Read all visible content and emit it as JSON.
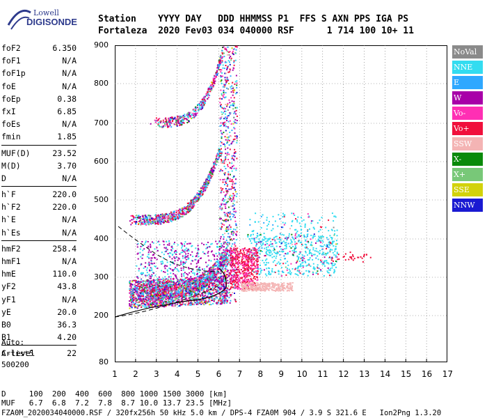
{
  "logo": {
    "line1": "Lowell",
    "line2": "DIGISONDE"
  },
  "header": {
    "line1": "Station    YYYY DAY   DDD HHMMSS P1  FFS S AXN PPS IGA PS",
    "line2": "Fortaleza  2020 Fev03 034 040000 RSF      1 714 100 10+ 11"
  },
  "params": {
    "group1": [
      {
        "k": "foF2",
        "v": "6.350"
      },
      {
        "k": "foF1",
        "v": "N/A"
      },
      {
        "k": "foF1p",
        "v": "N/A"
      },
      {
        "k": "foE",
        "v": "N/A"
      },
      {
        "k": "foEp",
        "v": "0.38"
      },
      {
        "k": "fxI",
        "v": "6.85"
      },
      {
        "k": "foEs",
        "v": "N/A"
      },
      {
        "k": "fmin",
        "v": "1.85"
      }
    ],
    "group2": [
      {
        "k": "MUF(D)",
        "v": "23.52"
      },
      {
        "k": "M(D)",
        "v": "3.70"
      },
      {
        "k": "D",
        "v": "N/A"
      }
    ],
    "group3": [
      {
        "k": "h`F",
        "v": "220.0"
      },
      {
        "k": "h`F2",
        "v": "220.0"
      },
      {
        "k": "h`E",
        "v": "N/A"
      },
      {
        "k": "h`Es",
        "v": "N/A"
      }
    ],
    "group4": [
      {
        "k": "hmF2",
        "v": "258.4"
      },
      {
        "k": "hmF1",
        "v": "N/A"
      },
      {
        "k": "hmE",
        "v": "110.0"
      },
      {
        "k": "yF2",
        "v": "43.8"
      },
      {
        "k": "yF1",
        "v": "N/A"
      },
      {
        "k": "yE",
        "v": "20.0"
      },
      {
        "k": "B0",
        "v": "36.3"
      },
      {
        "k": "B1",
        "v": "4.20"
      }
    ],
    "group5": [
      {
        "k": "C-level",
        "v": "22"
      }
    ]
  },
  "auto": {
    "line1": "Auto:",
    "line2": "Artist5",
    "line3": "500200"
  },
  "legend": [
    {
      "label": "NoVal",
      "color": "#8a8a8a"
    },
    {
      "label": "NNE",
      "color": "#33dcf0"
    },
    {
      "label": "E",
      "color": "#2fa8ff"
    },
    {
      "label": "W",
      "color": "#a800a8"
    },
    {
      "label": "Vo-",
      "color": "#ff2fb4"
    },
    {
      "label": "Vo+",
      "color": "#f0103c"
    },
    {
      "label": "SSW",
      "color": "#f4b4b4"
    },
    {
      "label": "X-",
      "color": "#0a8a0a"
    },
    {
      "label": "X+",
      "color": "#78c878"
    },
    {
      "label": "SSE",
      "color": "#d2d20a"
    },
    {
      "label": "NNW",
      "color": "#1a1ad2"
    }
  ],
  "axes": {
    "y_ticks": [
      "900",
      "800",
      "700",
      "600",
      "500",
      "400",
      "300",
      "200",
      "80"
    ],
    "x_ticks": [
      "1",
      "2",
      "3",
      "4",
      "5",
      "6",
      "7",
      "8",
      "9",
      "10",
      "11",
      "12",
      "13",
      "14",
      "15",
      "16",
      "17"
    ]
  },
  "bottom": {
    "line1": "D     100  200  400  600  800 1000 1500 3000 [km]",
    "line2": "MUF   6.7  6.8  7.2  7.8  8.7 10.0 13.7 23.5 [MHz]",
    "line3": "FZA0M_2020034040000.RSF / 320fx256h 50 kHz 5.0 km / DPS-4 FZA0M 904 / 3.9 S 321.6 E   Ion2Png 1.3.20"
  }
}
